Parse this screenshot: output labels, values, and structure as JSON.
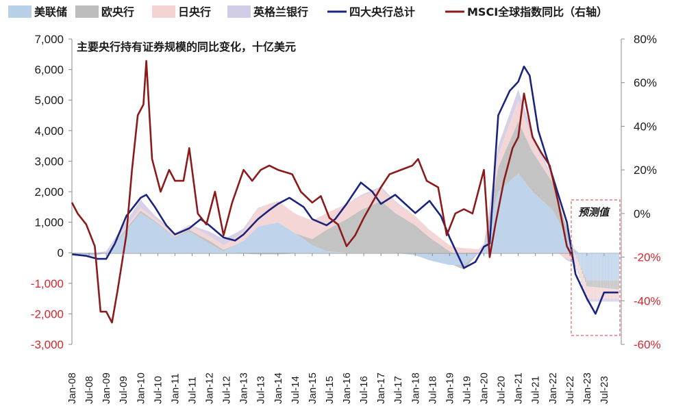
{
  "chart_data": {
    "type": "area",
    "subtitle": "主要央行持有证券规模的同比变化，十亿美元",
    "legend": {
      "fed": "美联储",
      "ecb": "欧央行",
      "boj": "日央行",
      "boe": "英格兰银行",
      "total": "四大央行总计",
      "msci": "MSCI全球指数同比（右轴）"
    },
    "legend_placement": "top",
    "forecast_label": "预测值",
    "forecast_start": "2022-08",
    "forecast_end": "2023-12",
    "x_ticks": [
      "Jan-08",
      "Jul-08",
      "Jan-09",
      "Jul-09",
      "Jan-10",
      "Jul-10",
      "Jan-11",
      "Jul-11",
      "Jan-12",
      "Jul-12",
      "Jan-13",
      "Jul-13",
      "Jan-14",
      "Jul-14",
      "Jan-15",
      "Jul-15",
      "Jan-16",
      "Jul-16",
      "Jan-17",
      "Jul-17",
      "Jan-18",
      "Jul-18",
      "Jan-19",
      "Jul-19",
      "Jan-20",
      "Jul-20",
      "Jan-21",
      "Jul-21",
      "Jan-22",
      "Jul-22",
      "Jan-23",
      "Jul-23"
    ],
    "y_left": {
      "min": -3000,
      "max": 7000,
      "ticks": [
        "-3,000",
        "-2,000",
        "-1,000",
        "0",
        "1,000",
        "2,000",
        "3,000",
        "4,000",
        "5,000",
        "6,000",
        "7,000"
      ],
      "tick_values": [
        -3000,
        -2000,
        -1000,
        0,
        1000,
        2000,
        3000,
        4000,
        5000,
        6000,
        7000
      ]
    },
    "y_right": {
      "min": -60,
      "max": 80,
      "ticks": [
        "-60%",
        "-40%",
        "-20%",
        "0%",
        "20%",
        "40%",
        "60%",
        "80%"
      ],
      "tick_values": [
        -60,
        -40,
        -20,
        0,
        20,
        40,
        60,
        80
      ]
    },
    "series_stacked": [
      {
        "name": "美联储",
        "color": "#b8cfe8",
        "points": [
          [
            "2008-01",
            -50
          ],
          [
            "2008-09",
            -100
          ],
          [
            "2009-01",
            0
          ],
          [
            "2009-06",
            500
          ],
          [
            "2010-01",
            1300
          ],
          [
            "2010-06",
            1000
          ],
          [
            "2011-01",
            500
          ],
          [
            "2011-06",
            700
          ],
          [
            "2012-01",
            300
          ],
          [
            "2012-06",
            50
          ],
          [
            "2013-01",
            400
          ],
          [
            "2013-06",
            850
          ],
          [
            "2014-01",
            1000
          ],
          [
            "2014-06",
            700
          ],
          [
            "2015-01",
            250
          ],
          [
            "2015-06",
            50
          ],
          [
            "2016-01",
            0
          ],
          [
            "2016-06",
            0
          ],
          [
            "2017-01",
            0
          ],
          [
            "2017-06",
            0
          ],
          [
            "2018-01",
            -80
          ],
          [
            "2018-06",
            -250
          ],
          [
            "2019-01",
            -400
          ],
          [
            "2019-06",
            -400
          ],
          [
            "2020-01",
            150
          ],
          [
            "2020-06",
            2000
          ],
          [
            "2021-01",
            2600
          ],
          [
            "2021-06",
            2000
          ],
          [
            "2022-01",
            1400
          ],
          [
            "2022-06",
            500
          ],
          [
            "2023-01",
            -900
          ],
          [
            "2023-12",
            -900
          ]
        ]
      },
      {
        "name": "欧央行",
        "color": "#bdbdbd",
        "points": [
          [
            "2008-01",
            0
          ],
          [
            "2008-09",
            0
          ],
          [
            "2009-01",
            0
          ],
          [
            "2009-06",
            60
          ],
          [
            "2010-01",
            80
          ],
          [
            "2010-06",
            40
          ],
          [
            "2011-01",
            20
          ],
          [
            "2011-06",
            50
          ],
          [
            "2012-01",
            100
          ],
          [
            "2012-06",
            50
          ],
          [
            "2013-01",
            -30
          ],
          [
            "2013-06",
            -50
          ],
          [
            "2014-01",
            -50
          ],
          [
            "2014-06",
            -30
          ],
          [
            "2015-01",
            200
          ],
          [
            "2015-06",
            700
          ],
          [
            "2016-01",
            1100
          ],
          [
            "2016-06",
            1400
          ],
          [
            "2017-01",
            1700
          ],
          [
            "2017-06",
            1300
          ],
          [
            "2018-01",
            900
          ],
          [
            "2018-06",
            500
          ],
          [
            "2019-01",
            50
          ],
          [
            "2019-06",
            -150
          ],
          [
            "2020-01",
            50
          ],
          [
            "2020-06",
            800
          ],
          [
            "2021-01",
            1700
          ],
          [
            "2021-06",
            1300
          ],
          [
            "2022-01",
            900
          ],
          [
            "2022-06",
            300
          ],
          [
            "2023-01",
            -200
          ],
          [
            "2023-12",
            -300
          ]
        ]
      },
      {
        "name": "日央行",
        "color": "#f3d2d2",
        "points": [
          [
            "2008-01",
            0
          ],
          [
            "2008-09",
            0
          ],
          [
            "2009-01",
            0
          ],
          [
            "2009-06",
            50
          ],
          [
            "2010-01",
            100
          ],
          [
            "2010-06",
            80
          ],
          [
            "2011-01",
            100
          ],
          [
            "2011-06",
            150
          ],
          [
            "2012-01",
            150
          ],
          [
            "2012-06",
            150
          ],
          [
            "2013-01",
            300
          ],
          [
            "2013-06",
            600
          ],
          [
            "2014-01",
            700
          ],
          [
            "2014-06",
            650
          ],
          [
            "2015-01",
            600
          ],
          [
            "2015-06",
            550
          ],
          [
            "2016-01",
            500
          ],
          [
            "2016-06",
            450
          ],
          [
            "2017-01",
            400
          ],
          [
            "2017-06",
            350
          ],
          [
            "2018-01",
            300
          ],
          [
            "2018-06",
            250
          ],
          [
            "2019-01",
            200
          ],
          [
            "2019-06",
            150
          ],
          [
            "2020-01",
            100
          ],
          [
            "2020-06",
            400
          ],
          [
            "2021-01",
            700
          ],
          [
            "2021-06",
            400
          ],
          [
            "2022-01",
            100
          ],
          [
            "2022-06",
            -200
          ],
          [
            "2023-01",
            -400
          ],
          [
            "2023-12",
            -300
          ]
        ]
      },
      {
        "name": "英格兰银行",
        "color": "#d2cce6",
        "points": [
          [
            "2008-01",
            0
          ],
          [
            "2008-09",
            0
          ],
          [
            "2009-01",
            50
          ],
          [
            "2009-06",
            150
          ],
          [
            "2010-01",
            250
          ],
          [
            "2010-06",
            100
          ],
          [
            "2011-01",
            20
          ],
          [
            "2011-06",
            10
          ],
          [
            "2012-01",
            150
          ],
          [
            "2012-06",
            200
          ],
          [
            "2013-01",
            100
          ],
          [
            "2013-06",
            20
          ],
          [
            "2014-01",
            0
          ],
          [
            "2014-06",
            0
          ],
          [
            "2015-01",
            0
          ],
          [
            "2015-06",
            0
          ],
          [
            "2016-01",
            0
          ],
          [
            "2016-06",
            40
          ],
          [
            "2017-01",
            70
          ],
          [
            "2017-06",
            40
          ],
          [
            "2018-01",
            0
          ],
          [
            "2018-06",
            0
          ],
          [
            "2019-01",
            0
          ],
          [
            "2019-06",
            0
          ],
          [
            "2020-01",
            0
          ],
          [
            "2020-06",
            300
          ],
          [
            "2021-01",
            350
          ],
          [
            "2021-06",
            200
          ],
          [
            "2022-01",
            50
          ],
          [
            "2022-06",
            -50
          ],
          [
            "2023-01",
            -100
          ],
          [
            "2023-12",
            -100
          ]
        ]
      }
    ],
    "series_lines": [
      {
        "name": "四大央行总计",
        "color": "#1a237e",
        "axis": "left",
        "points": [
          [
            "2008-01",
            -50
          ],
          [
            "2008-06",
            -100
          ],
          [
            "2008-10",
            -200
          ],
          [
            "2009-01",
            -200
          ],
          [
            "2009-04",
            300
          ],
          [
            "2009-08",
            1200
          ],
          [
            "2010-01",
            1800
          ],
          [
            "2010-03",
            1900
          ],
          [
            "2010-06",
            1500
          ],
          [
            "2010-10",
            900
          ],
          [
            "2011-01",
            600
          ],
          [
            "2011-06",
            800
          ],
          [
            "2011-10",
            1100
          ],
          [
            "2012-01",
            900
          ],
          [
            "2012-06",
            500
          ],
          [
            "2012-10",
            400
          ],
          [
            "2013-01",
            600
          ],
          [
            "2013-06",
            1100
          ],
          [
            "2013-10",
            1400
          ],
          [
            "2014-01",
            1600
          ],
          [
            "2014-05",
            1800
          ],
          [
            "2014-10",
            1500
          ],
          [
            "2015-01",
            1100
          ],
          [
            "2015-06",
            900
          ],
          [
            "2015-09",
            1100
          ],
          [
            "2016-01",
            1600
          ],
          [
            "2016-06",
            2300
          ],
          [
            "2016-10",
            2000
          ],
          [
            "2017-01",
            1600
          ],
          [
            "2017-06",
            1900
          ],
          [
            "2018-01",
            1300
          ],
          [
            "2018-06",
            1700
          ],
          [
            "2018-10",
            1200
          ],
          [
            "2019-01",
            500
          ],
          [
            "2019-06",
            -500
          ],
          [
            "2019-10",
            -300
          ],
          [
            "2020-01",
            200
          ],
          [
            "2020-03",
            300
          ],
          [
            "2020-06",
            4500
          ],
          [
            "2020-10",
            5300
          ],
          [
            "2021-01",
            5600
          ],
          [
            "2021-03",
            6100
          ],
          [
            "2021-05",
            5800
          ],
          [
            "2021-08",
            4000
          ],
          [
            "2022-01",
            2500
          ],
          [
            "2022-06",
            1000
          ],
          [
            "2022-09",
            -700
          ],
          [
            "2023-01",
            -1500
          ],
          [
            "2023-04",
            -2000
          ],
          [
            "2023-07",
            -1300
          ],
          [
            "2023-12",
            -1300
          ]
        ]
      },
      {
        "name": "MSCI全球指数同比（右轴）",
        "color": "#8b1a1a",
        "axis": "right",
        "points": [
          [
            "2008-01",
            5
          ],
          [
            "2008-03",
            0
          ],
          [
            "2008-06",
            -5
          ],
          [
            "2008-09",
            -15
          ],
          [
            "2008-11",
            -45
          ],
          [
            "2009-01",
            -45
          ],
          [
            "2009-03",
            -50
          ],
          [
            "2009-05",
            -35
          ],
          [
            "2009-08",
            -10
          ],
          [
            "2009-10",
            20
          ],
          [
            "2009-12",
            45
          ],
          [
            "2010-02",
            50
          ],
          [
            "2010-03",
            70
          ],
          [
            "2010-05",
            25
          ],
          [
            "2010-08",
            10
          ],
          [
            "2010-11",
            20
          ],
          [
            "2011-01",
            15
          ],
          [
            "2011-04",
            15
          ],
          [
            "2011-06",
            30
          ],
          [
            "2011-09",
            0
          ],
          [
            "2011-12",
            -5
          ],
          [
            "2012-03",
            10
          ],
          [
            "2012-06",
            -10
          ],
          [
            "2012-09",
            5
          ],
          [
            "2013-01",
            20
          ],
          [
            "2013-04",
            15
          ],
          [
            "2013-07",
            20
          ],
          [
            "2013-10",
            22
          ],
          [
            "2014-01",
            20
          ],
          [
            "2014-06",
            18
          ],
          [
            "2014-09",
            10
          ],
          [
            "2015-01",
            5
          ],
          [
            "2015-04",
            8
          ],
          [
            "2015-07",
            -2
          ],
          [
            "2015-10",
            -5
          ],
          [
            "2016-01",
            -15
          ],
          [
            "2016-04",
            -10
          ],
          [
            "2016-07",
            -2
          ],
          [
            "2016-10",
            5
          ],
          [
            "2017-01",
            12
          ],
          [
            "2017-04",
            18
          ],
          [
            "2017-08",
            20
          ],
          [
            "2017-12",
            22
          ],
          [
            "2018-02",
            25
          ],
          [
            "2018-05",
            15
          ],
          [
            "2018-09",
            12
          ],
          [
            "2018-12",
            -10
          ],
          [
            "2019-03",
            0
          ],
          [
            "2019-06",
            2
          ],
          [
            "2019-09",
            0
          ],
          [
            "2020-01",
            20
          ],
          [
            "2020-03",
            -20
          ],
          [
            "2020-05",
            -5
          ],
          [
            "2020-08",
            15
          ],
          [
            "2020-11",
            30
          ],
          [
            "2021-01",
            35
          ],
          [
            "2021-03",
            55
          ],
          [
            "2021-06",
            35
          ],
          [
            "2021-09",
            28
          ],
          [
            "2021-12",
            22
          ],
          [
            "2022-03",
            5
          ],
          [
            "2022-06",
            -15
          ],
          [
            "2022-08",
            -20
          ]
        ]
      }
    ]
  }
}
